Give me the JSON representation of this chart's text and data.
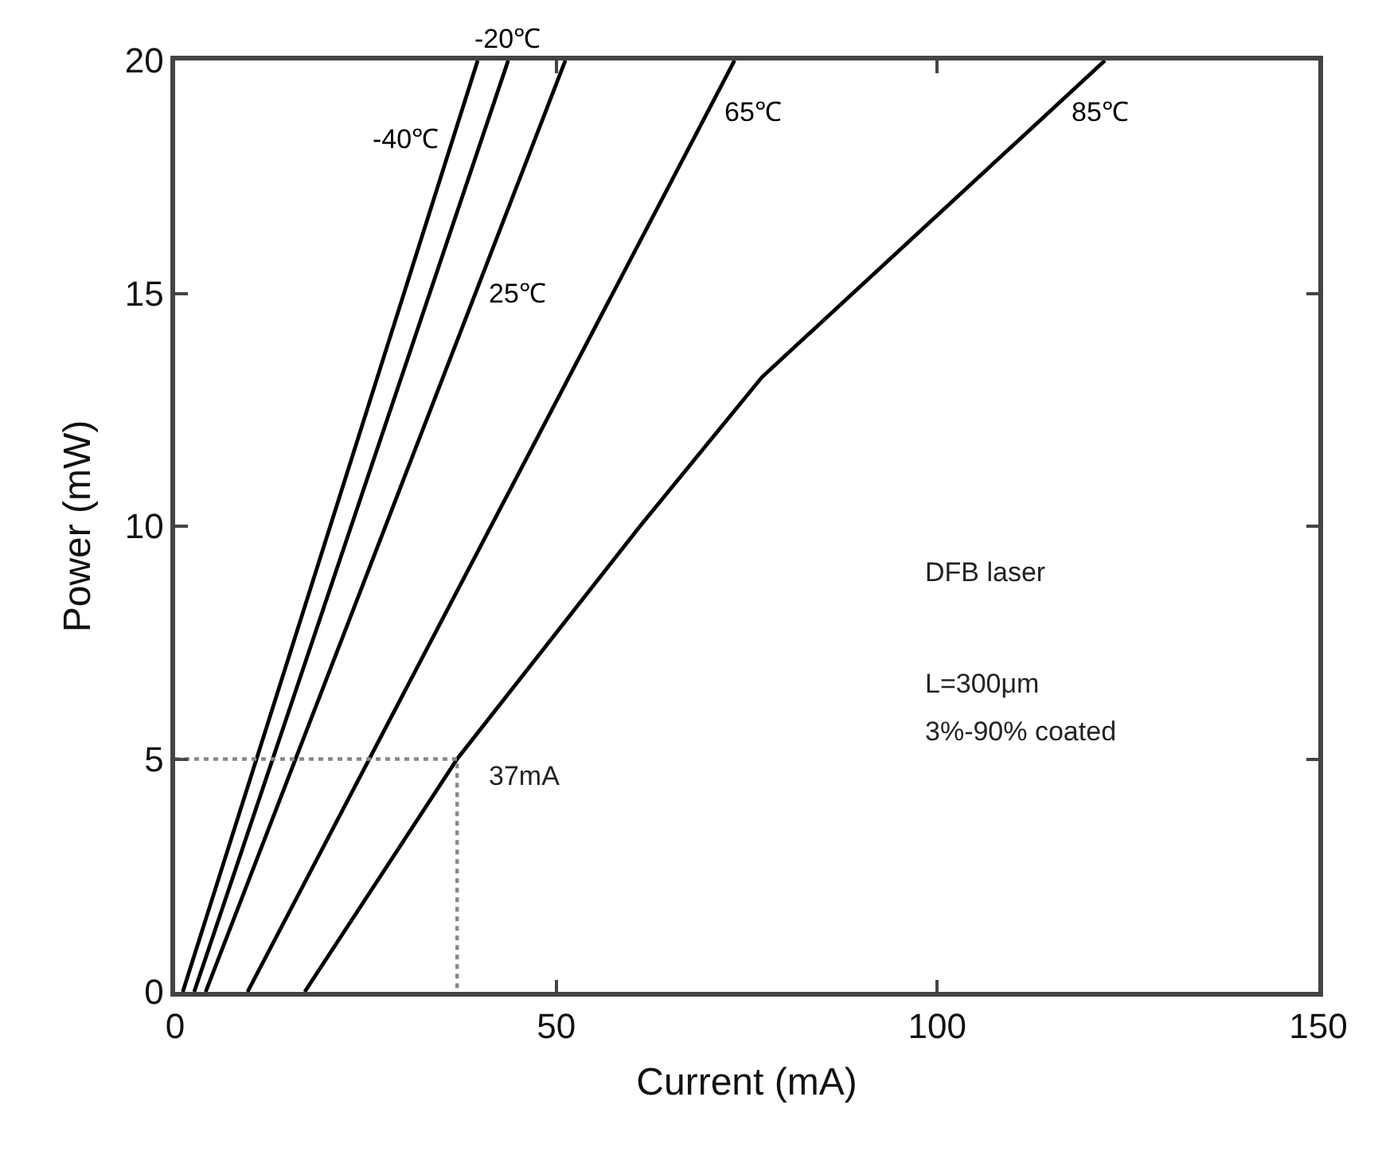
{
  "chart_data": {
    "type": "line",
    "xlabel": "Current (mA)",
    "ylabel": "Power (mW)",
    "xlim": [
      0,
      150
    ],
    "ylim": [
      0,
      20
    ],
    "xticks": [
      0,
      50,
      100,
      150
    ],
    "yticks": [
      0,
      5,
      10,
      15,
      20
    ],
    "grid": false,
    "legend": false,
    "marker": "none",
    "series": [
      {
        "name": "-40℃",
        "color": "#000000",
        "x": [
          1,
          39.7
        ],
        "values": [
          0,
          20
        ]
      },
      {
        "name": "-20℃",
        "color": "#000000",
        "x": [
          2.5,
          43.7
        ],
        "values": [
          0,
          20
        ]
      },
      {
        "name": "25℃",
        "color": "#000000",
        "x": [
          4,
          51.2
        ],
        "values": [
          0,
          20
        ]
      },
      {
        "name": "65℃",
        "color": "#000000",
        "x": [
          9.5,
          73.4
        ],
        "values": [
          0,
          20
        ]
      },
      {
        "name": "85℃",
        "color": "#000000",
        "x": [
          17,
          37,
          61,
          77,
          122
        ],
        "values": [
          0,
          5,
          10,
          13.2,
          20
        ]
      },
      {
        "color": "#888888",
        "line_style": "dotted",
        "x": [
          0,
          37,
          37
        ],
        "values": [
          5,
          5,
          0
        ]
      }
    ],
    "annotations": [
      {
        "text": "37mA",
        "x": 37,
        "y": 5
      },
      "DFB laser",
      "L=300μm",
      "3%-90% coated"
    ]
  }
}
